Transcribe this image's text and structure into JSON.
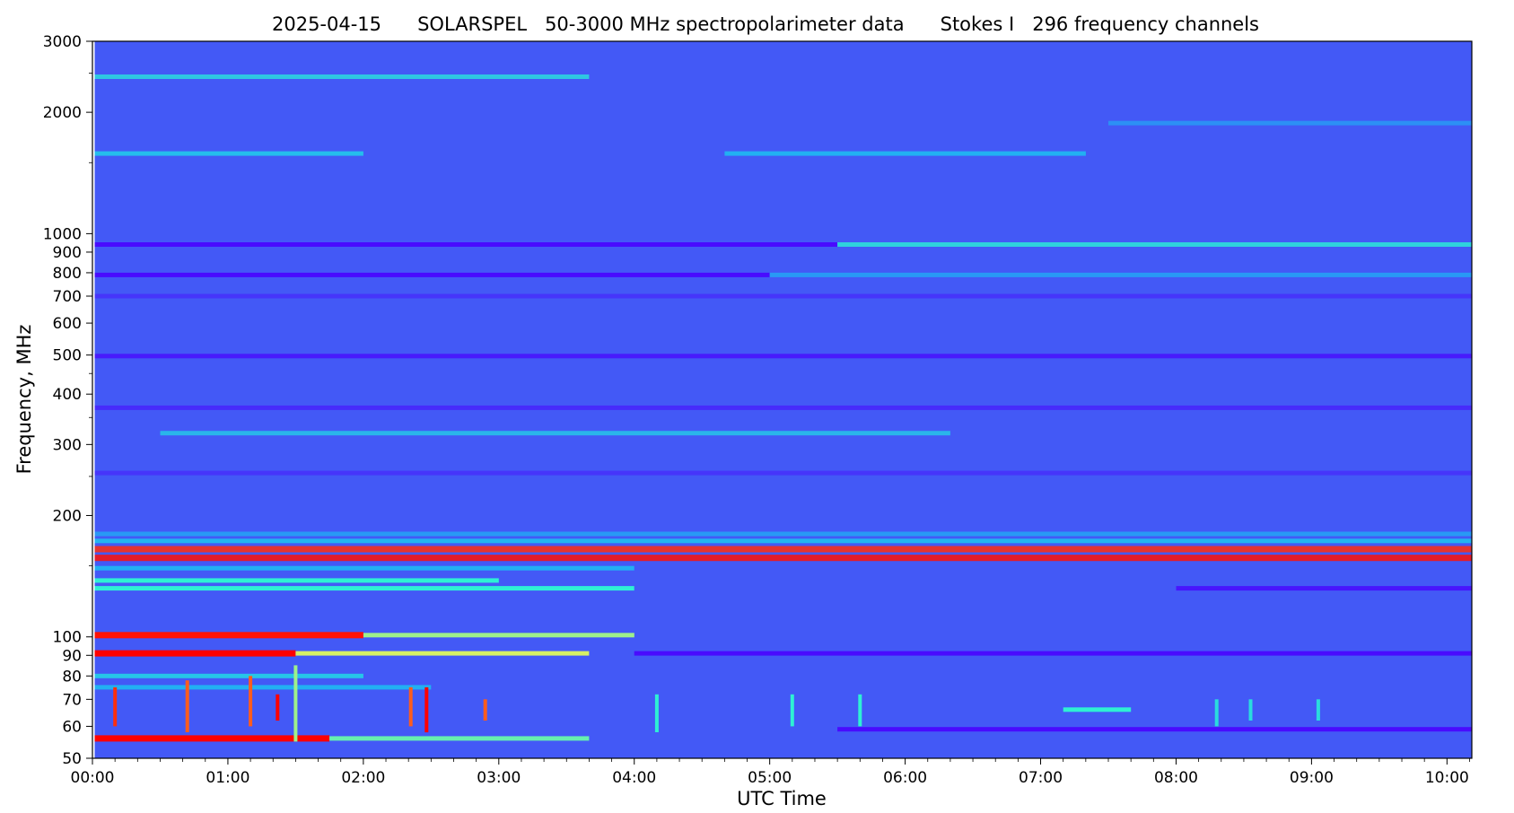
{
  "chart_data": {
    "type": "heatmap",
    "title": "2025-04-15      SOLARSPEL   50-3000 MHz spectropolarimeter data      Stokes I   296 frequency channels",
    "xlabel": "UTC Time",
    "ylabel": "Frequency, MHz",
    "x_scale": "linear",
    "y_scale": "log",
    "xlim": [
      "00:00",
      "10:11"
    ],
    "ylim": [
      50,
      3000
    ],
    "data_start": "00:01",
    "x_ticks": [
      "00:00",
      "01:00",
      "02:00",
      "03:00",
      "04:00",
      "05:00",
      "06:00",
      "07:00",
      "08:00",
      "09:00",
      "10:00"
    ],
    "y_ticks": [
      {
        "value": 50,
        "label": "50"
      },
      {
        "value": 60,
        "label": "60"
      },
      {
        "value": 70,
        "label": "70"
      },
      {
        "value": 80,
        "label": "80"
      },
      {
        "value": 90,
        "label": "90"
      },
      {
        "value": 100,
        "label": "100"
      },
      {
        "value": 200,
        "label": "200"
      },
      {
        "value": 300,
        "label": "300"
      },
      {
        "value": 400,
        "label": "400"
      },
      {
        "value": 500,
        "label": "500"
      },
      {
        "value": 600,
        "label": "600"
      },
      {
        "value": 700,
        "label": "700"
      },
      {
        "value": 800,
        "label": "800"
      },
      {
        "value": 900,
        "label": "900"
      },
      {
        "value": 1000,
        "label": "1000"
      },
      {
        "value": 2000,
        "label": "2000"
      },
      {
        "value": 3000,
        "label": "3000"
      }
    ],
    "y_minor_ticks": [
      150,
      250,
      350,
      450,
      1500,
      2500
    ],
    "background_color": "#4359f6",
    "colormap": [
      "#4a00ff",
      "#4359f6",
      "#21a9f5",
      "#2ef0d4",
      "#e8f05a",
      "#ff9a30",
      "#ff0000"
    ],
    "features": [
      {
        "kind": "band",
        "freq": 2450,
        "start": "00:01",
        "end": "03:40",
        "level": 0.45,
        "dotted": true
      },
      {
        "kind": "band",
        "freq": 1580,
        "start": "00:01",
        "end": "02:00",
        "level": 0.38
      },
      {
        "kind": "band",
        "freq": 1580,
        "start": "04:40",
        "end": "07:20",
        "level": 0.35
      },
      {
        "kind": "band",
        "freq": 1880,
        "start": "07:30",
        "end": "10:11",
        "level": 0.28
      },
      {
        "kind": "band",
        "freq": 940,
        "start": "00:01",
        "end": "05:30",
        "level": 0.02
      },
      {
        "kind": "band",
        "freq": 940,
        "start": "05:30",
        "end": "10:11",
        "level": 0.48,
        "dotted": true
      },
      {
        "kind": "band",
        "freq": 790,
        "start": "00:01",
        "end": "05:00",
        "level": 0.02
      },
      {
        "kind": "band",
        "freq": 790,
        "start": "05:00",
        "end": "10:11",
        "level": 0.3
      },
      {
        "kind": "band",
        "freq": 700,
        "start": "00:01",
        "end": "10:11",
        "level": 0.1
      },
      {
        "kind": "band",
        "freq": 497,
        "start": "00:01",
        "end": "10:11",
        "level": 0.05
      },
      {
        "kind": "band",
        "freq": 370,
        "start": "00:01",
        "end": "10:11",
        "level": 0.08
      },
      {
        "kind": "band",
        "freq": 320,
        "start": "00:30",
        "end": "06:20",
        "level": 0.4,
        "dotted": true
      },
      {
        "kind": "band",
        "freq": 255,
        "start": "00:01",
        "end": "10:11",
        "level": 0.1
      },
      {
        "kind": "band",
        "freq": 180,
        "start": "00:01",
        "end": "10:11",
        "level": 0.3
      },
      {
        "kind": "band",
        "freq": 173,
        "start": "00:01",
        "end": "10:11",
        "level": 0.36
      },
      {
        "kind": "band",
        "freq": 165,
        "start": "00:01",
        "end": "10:11",
        "level": 0.95,
        "dotted": true
      },
      {
        "kind": "band",
        "freq": 157,
        "start": "00:01",
        "end": "10:11",
        "level": 0.98,
        "dotted": true
      },
      {
        "kind": "band",
        "freq": 148,
        "start": "00:01",
        "end": "04:00",
        "level": 0.35
      },
      {
        "kind": "band",
        "freq": 138,
        "start": "00:01",
        "end": "03:00",
        "level": 0.5
      },
      {
        "kind": "band",
        "freq": 132,
        "start": "00:01",
        "end": "04:00",
        "level": 0.5
      },
      {
        "kind": "band",
        "freq": 132,
        "start": "08:00",
        "end": "10:11",
        "level": 0.04
      },
      {
        "kind": "band",
        "freq": 101,
        "start": "00:01",
        "end": "02:00",
        "level": 0.98
      },
      {
        "kind": "band",
        "freq": 101,
        "start": "02:00",
        "end": "04:00",
        "level": 0.6
      },
      {
        "kind": "band",
        "freq": 91,
        "start": "00:01",
        "end": "01:30",
        "level": 1.0
      },
      {
        "kind": "band",
        "freq": 91,
        "start": "01:30",
        "end": "03:40",
        "level": 0.65
      },
      {
        "kind": "band",
        "freq": 91,
        "start": "04:00",
        "end": "10:11",
        "level": 0.02
      },
      {
        "kind": "band",
        "freq": 80,
        "start": "00:01",
        "end": "02:00",
        "level": 0.4
      },
      {
        "kind": "band",
        "freq": 75,
        "start": "00:01",
        "end": "02:30",
        "level": 0.35
      },
      {
        "kind": "band",
        "freq": 56,
        "start": "00:01",
        "end": "01:45",
        "level": 1.0
      },
      {
        "kind": "band",
        "freq": 56,
        "start": "01:45",
        "end": "03:40",
        "level": 0.55
      },
      {
        "kind": "band",
        "freq": 59,
        "start": "05:30",
        "end": "10:11",
        "level": 0.02
      },
      {
        "kind": "band",
        "freq": 66,
        "start": "07:10",
        "end": "07:40",
        "level": 0.5
      },
      {
        "kind": "burst",
        "time": "00:10",
        "f1": 60,
        "f2": 75,
        "level": 0.95
      },
      {
        "kind": "burst",
        "time": "00:42",
        "f1": 58,
        "f2": 78,
        "level": 0.9
      },
      {
        "kind": "burst",
        "time": "01:10",
        "f1": 60,
        "f2": 80,
        "level": 0.9
      },
      {
        "kind": "burst",
        "time": "01:22",
        "f1": 62,
        "f2": 72,
        "level": 1.0
      },
      {
        "kind": "burst",
        "time": "01:30",
        "f1": 55,
        "f2": 85,
        "level": 0.6
      },
      {
        "kind": "burst",
        "time": "02:21",
        "f1": 60,
        "f2": 75,
        "level": 0.9
      },
      {
        "kind": "burst",
        "time": "02:28",
        "f1": 58,
        "f2": 75,
        "level": 1.0
      },
      {
        "kind": "burst",
        "time": "02:54",
        "f1": 62,
        "f2": 70,
        "level": 0.9
      },
      {
        "kind": "burst",
        "time": "04:10",
        "f1": 58,
        "f2": 72,
        "level": 0.5
      },
      {
        "kind": "burst",
        "time": "05:10",
        "f1": 60,
        "f2": 72,
        "level": 0.5
      },
      {
        "kind": "burst",
        "time": "05:40",
        "f1": 60,
        "f2": 72,
        "level": 0.5
      },
      {
        "kind": "burst",
        "time": "08:18",
        "f1": 60,
        "f2": 70,
        "level": 0.45
      },
      {
        "kind": "burst",
        "time": "08:33",
        "f1": 62,
        "f2": 70,
        "level": 0.45
      },
      {
        "kind": "burst",
        "time": "09:03",
        "f1": 62,
        "f2": 70,
        "level": 0.45
      }
    ]
  }
}
